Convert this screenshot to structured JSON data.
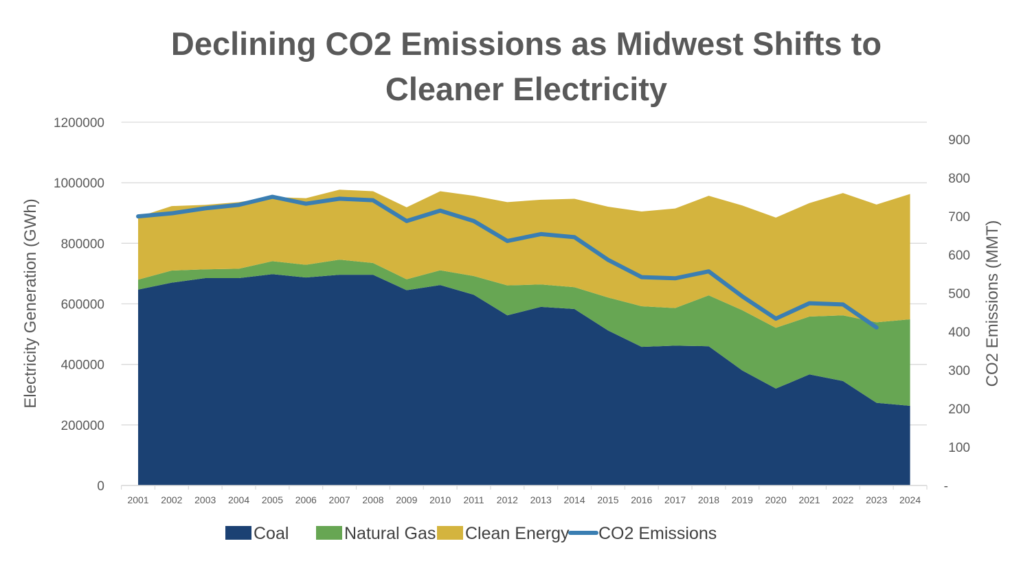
{
  "chart_data": {
    "type": "area",
    "title_lines": [
      "Declining CO2 Emissions as Midwest Shifts to",
      "Cleaner Electricity"
    ],
    "xlabel": "",
    "ylabel": "Electricity Generation (GWh)",
    "y2label": "CO2 Emissions (MMT)",
    "categories": [
      "2001",
      "2002",
      "2003",
      "2004",
      "2005",
      "2006",
      "2007",
      "2008",
      "2009",
      "2010",
      "2011",
      "2012",
      "2013",
      "2014",
      "2015",
      "2016",
      "2017",
      "2018",
      "2019",
      "2020",
      "2021",
      "2022",
      "2023",
      "2024"
    ],
    "ylim": [
      0,
      1200000
    ],
    "yticks": [
      "0",
      "200000",
      "400000",
      "600000",
      "800000",
      "1000000",
      "1200000"
    ],
    "y2lim": [
      0,
      945
    ],
    "y2ticks": [
      "-",
      "100",
      "200",
      "300",
      "400",
      "500",
      "600",
      "700",
      "800",
      "900"
    ],
    "grid": true,
    "legend_position": "bottom",
    "stacked": true,
    "series": [
      {
        "name": "Coal",
        "axis": "left",
        "kind": "area",
        "color": "#1B4173",
        "values": [
          647000,
          670000,
          685000,
          685000,
          698000,
          687000,
          696000,
          696000,
          645000,
          662000,
          630000,
          562000,
          590000,
          583000,
          512000,
          458000,
          462000,
          460000,
          380000,
          320000,
          367000,
          345000,
          273000,
          263000
        ]
      },
      {
        "name": "Natural Gas",
        "axis": "left",
        "kind": "area",
        "color": "#67A653",
        "values": [
          33000,
          40000,
          29000,
          31000,
          43000,
          42000,
          50000,
          39000,
          36000,
          49000,
          62000,
          99000,
          74000,
          72000,
          109000,
          134000,
          124000,
          168000,
          199000,
          201000,
          191000,
          217000,
          266000,
          286000
        ]
      },
      {
        "name": "Clean Energy",
        "axis": "left",
        "kind": "area",
        "color": "#D4B43E",
        "values": [
          207000,
          213000,
          213000,
          220000,
          212000,
          220000,
          231000,
          237000,
          238000,
          261000,
          265000,
          275000,
          280000,
          292000,
          300000,
          313000,
          329000,
          329000,
          346000,
          364000,
          375000,
          404000,
          389000,
          414000
        ]
      },
      {
        "name": "CO2 Emissions",
        "axis": "right",
        "kind": "line",
        "color": "#3A7EB2",
        "values": [
          700,
          708,
          721,
          730,
          751,
          733,
          746,
          742,
          688,
          715,
          688,
          636,
          654,
          646,
          587,
          542,
          539,
          557,
          492,
          434,
          474,
          471,
          411,
          null
        ]
      }
    ]
  }
}
